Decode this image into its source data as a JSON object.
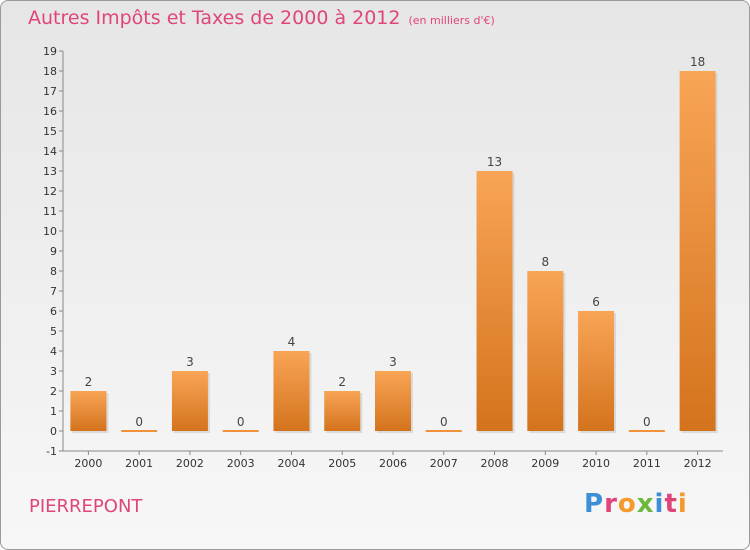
{
  "chart_data": {
    "type": "bar",
    "title": "Autres Impôts et Taxes de 2000 à 2012",
    "subtitle": "(en milliers d'€)",
    "categories": [
      "2000",
      "2001",
      "2002",
      "2003",
      "2004",
      "2005",
      "2006",
      "2007",
      "2008",
      "2009",
      "2010",
      "2011",
      "2012"
    ],
    "values": [
      2,
      0,
      3,
      0,
      4,
      2,
      3,
      0,
      13,
      8,
      6,
      0,
      18
    ],
    "ylim": [
      -1,
      19
    ],
    "yticks": [
      -1,
      0,
      1,
      2,
      3,
      4,
      5,
      6,
      7,
      8,
      9,
      10,
      11,
      12,
      13,
      14,
      15,
      16,
      17,
      18,
      19
    ],
    "grid": false,
    "bar_color": "#f0923a"
  },
  "footer": {
    "commune": "PIERREPONT",
    "logo": "Proxiti"
  }
}
